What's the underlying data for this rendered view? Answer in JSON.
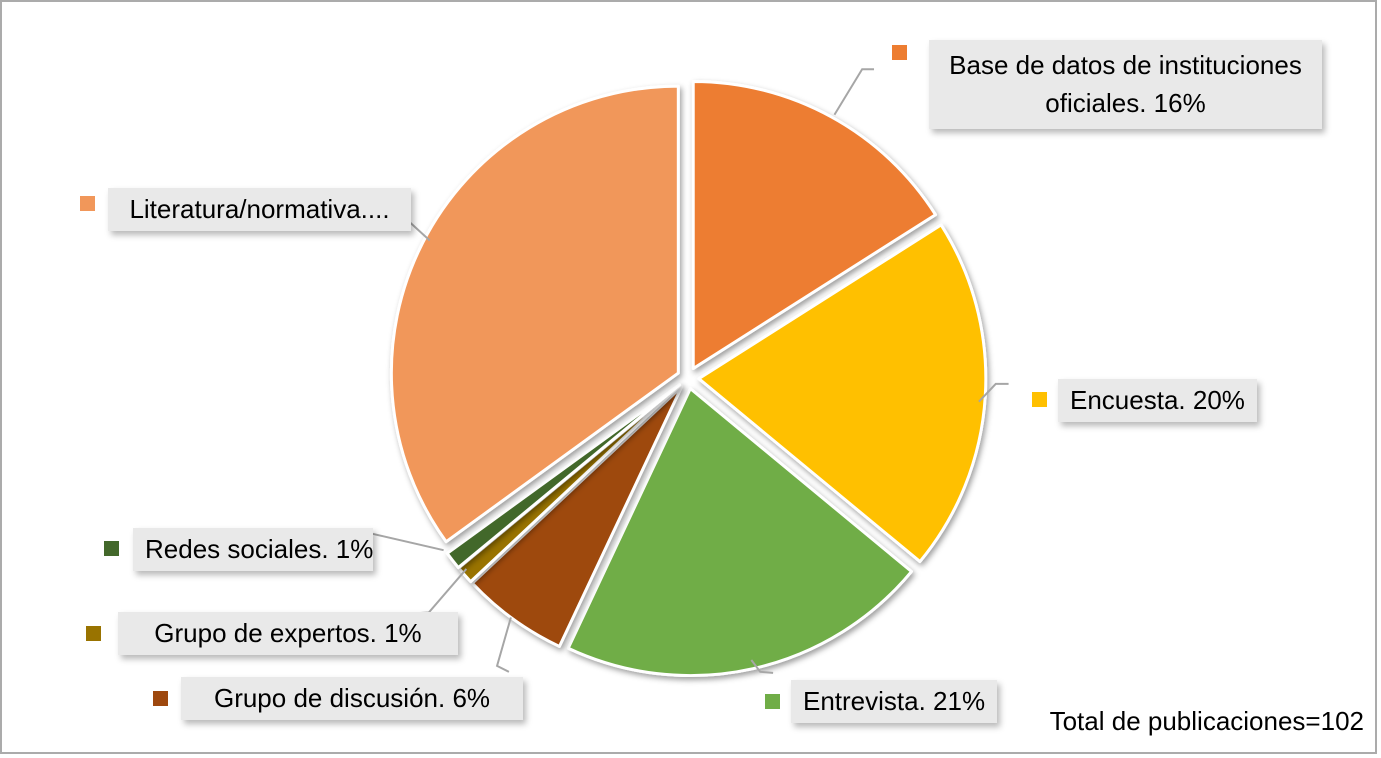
{
  "chart_data": {
    "type": "pie",
    "title": "",
    "direction": "clockwise",
    "start_angle_deg": 0,
    "legend_position": "callouts",
    "total_note": "Total de publicaciones=102",
    "total_publications": 102,
    "slices": [
      {
        "label": "Base de datos de instituciones oficiales",
        "value_pct": 16,
        "color": "#ED7D31",
        "callout": "Base de datos de instituciones oficiales. 16%"
      },
      {
        "label": "Encuesta",
        "value_pct": 20,
        "color": "#FFC000",
        "callout": "Encuesta. 20%"
      },
      {
        "label": "Entrevista",
        "value_pct": 21,
        "color": "#70AD47",
        "callout": "Entrevista. 21%"
      },
      {
        "label": "Grupo de discusión",
        "value_pct": 6,
        "color": "#9E480E",
        "callout": "Grupo de discusión. 6%"
      },
      {
        "label": "Grupo de expertos",
        "value_pct": 1,
        "color": "#997300",
        "callout": "Grupo de expertos. 1%"
      },
      {
        "label": "Redes sociales",
        "value_pct": 1,
        "color": "#43682B",
        "callout": "Redes sociales. 1%"
      },
      {
        "label": "Literatura/normativa",
        "value_pct": 35,
        "color": "#F1975A",
        "callout": "Literatura/normativa...."
      }
    ]
  },
  "colors": {
    "callout_bg": "#E9E9E9",
    "leader_line": "#A6A6A6",
    "text": "#000000",
    "slice_stroke": "#FFFFFF"
  }
}
